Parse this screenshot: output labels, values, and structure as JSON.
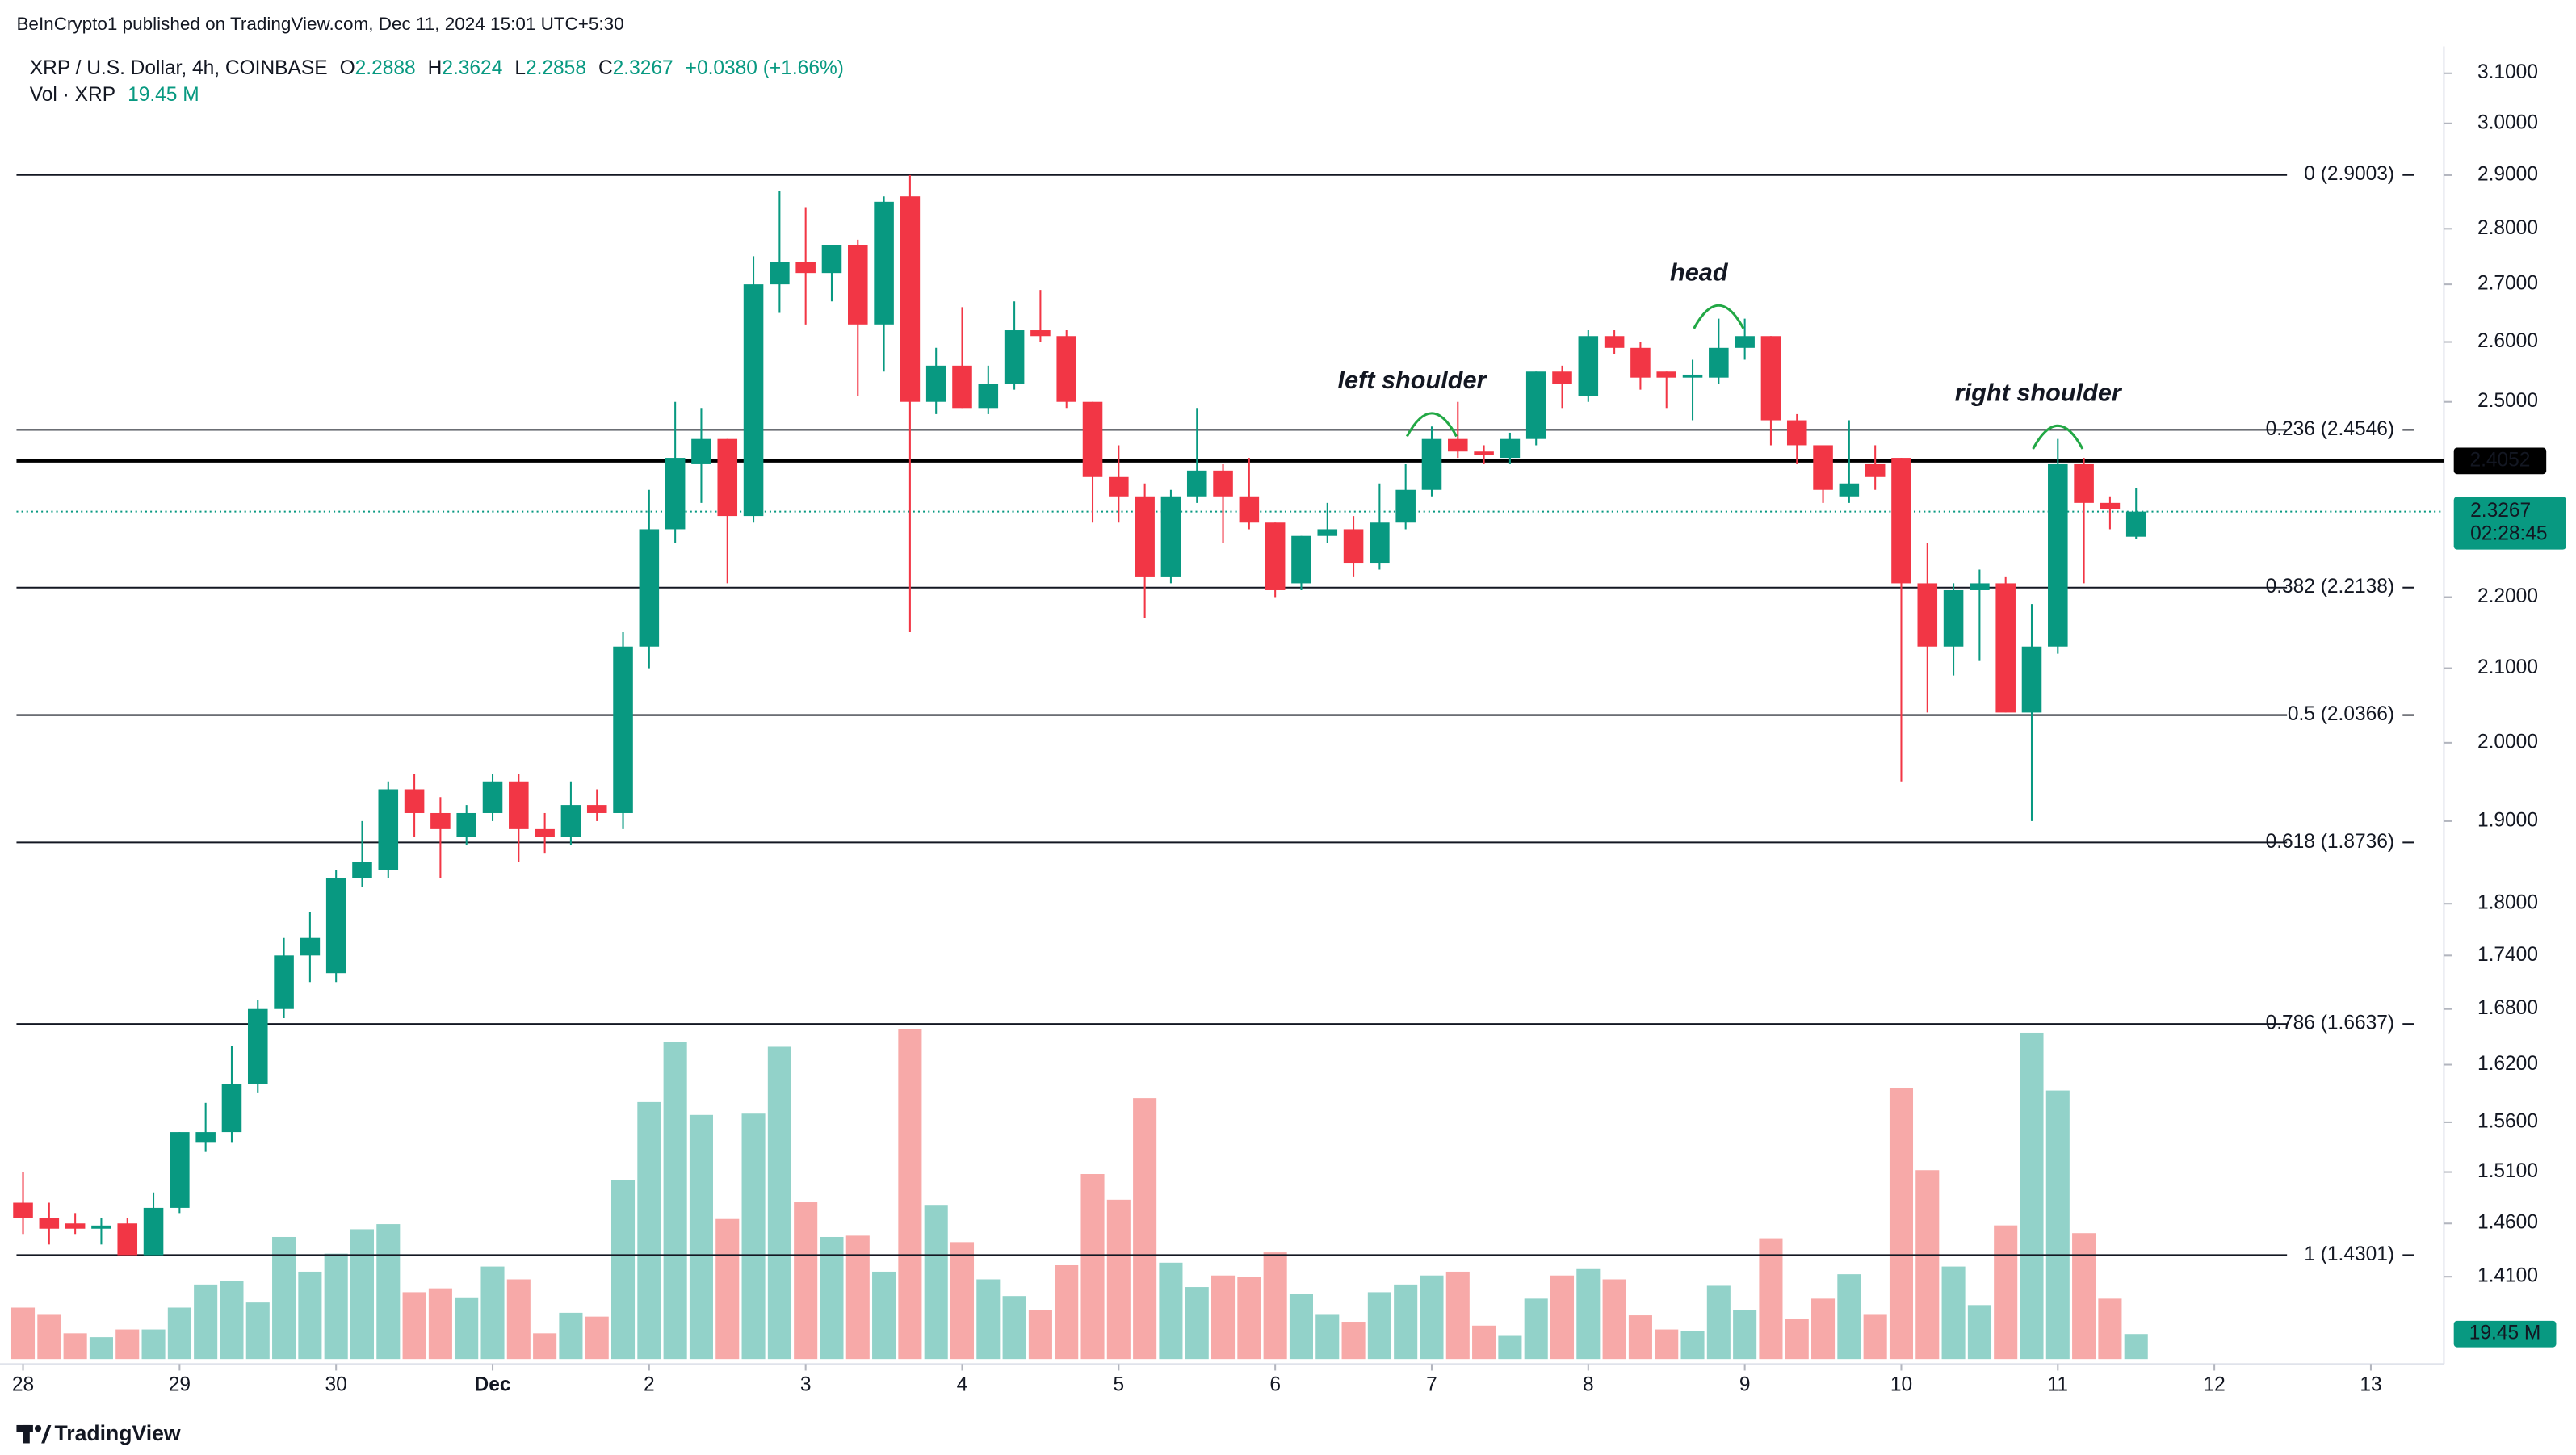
{
  "header": "BeInCrypto1 published on TradingView.com, Dec 11, 2024 15:01 UTC+5:30",
  "footer": "TradingView",
  "chart_data": {
    "type": "candlestick",
    "symbol": "XRP / U.S. Dollar, 4h, COINBASE",
    "legend": {
      "o": "O",
      "h": "H",
      "l": "L",
      "c": "C",
      "change": "+0.0380 (+1.66%)",
      "volume_name": "Vol · XRP",
      "volume_label": "19.45 M"
    },
    "up_color": "#089981",
    "down_color": "#f23645",
    "volume_up_color": "#92d2c9",
    "volume_down_color": "#f7a9a8",
    "log_scale": true,
    "open": [
      1.48,
      1.465,
      1.46,
      1.455,
      1.46,
      1.43,
      1.475,
      1.54,
      1.55,
      1.6,
      1.68,
      1.74,
      1.72,
      1.83,
      1.84,
      1.94,
      1.91,
      1.88,
      1.91,
      1.95,
      1.89,
      1.88,
      1.92,
      1.91,
      2.13,
      2.3,
      2.4,
      2.44,
      2.32,
      2.7,
      2.74,
      2.72,
      2.77,
      2.63,
      2.86,
      2.5,
      2.56,
      2.49,
      2.53,
      2.62,
      2.61,
      2.5,
      2.38,
      2.35,
      2.23,
      2.35,
      2.39,
      2.35,
      2.31,
      2.22,
      2.29,
      2.3,
      2.25,
      2.31,
      2.36,
      2.44,
      2.42,
      2.41,
      2.44,
      2.55,
      2.51,
      2.61,
      2.59,
      2.55,
      2.54,
      2.54,
      2.59,
      2.61,
      2.47,
      2.43,
      2.35,
      2.4,
      2.41,
      2.22,
      2.13,
      2.21,
      2.22,
      2.04,
      2.13,
      2.4,
      2.34,
      2.2888
    ],
    "high": [
      1.51,
      1.48,
      1.47,
      1.465,
      1.465,
      1.49,
      1.55,
      1.58,
      1.64,
      1.69,
      1.76,
      1.79,
      1.84,
      1.9,
      1.95,
      1.96,
      1.93,
      1.92,
      1.96,
      1.96,
      1.91,
      1.95,
      1.94,
      2.15,
      2.36,
      2.5,
      2.49,
      2.44,
      2.75,
      2.87,
      2.84,
      2.77,
      2.78,
      2.86,
      2.9,
      2.59,
      2.66,
      2.56,
      2.67,
      2.69,
      2.62,
      2.5,
      2.43,
      2.37,
      2.36,
      2.49,
      2.4,
      2.41,
      2.31,
      2.29,
      2.34,
      2.32,
      2.37,
      2.4,
      2.46,
      2.5,
      2.43,
      2.45,
      2.55,
      2.56,
      2.62,
      2.62,
      2.6,
      2.55,
      2.57,
      2.64,
      2.64,
      2.61,
      2.48,
      2.43,
      2.47,
      2.43,
      2.41,
      2.28,
      2.22,
      2.24,
      2.23,
      2.19,
      2.44,
      2.41,
      2.35,
      2.3624
    ],
    "low": [
      1.45,
      1.44,
      1.45,
      1.44,
      1.43,
      1.43,
      1.47,
      1.53,
      1.54,
      1.59,
      1.67,
      1.71,
      1.71,
      1.82,
      1.83,
      1.88,
      1.83,
      1.87,
      1.9,
      1.85,
      1.86,
      1.87,
      1.9,
      1.89,
      2.1,
      2.28,
      2.34,
      2.22,
      2.31,
      2.65,
      2.63,
      2.67,
      2.51,
      2.55,
      2.15,
      2.48,
      2.49,
      2.48,
      2.52,
      2.6,
      2.49,
      2.31,
      2.31,
      2.17,
      2.22,
      2.34,
      2.28,
      2.3,
      2.2,
      2.21,
      2.28,
      2.23,
      2.24,
      2.3,
      2.35,
      2.41,
      2.4,
      2.4,
      2.43,
      2.49,
      2.5,
      2.58,
      2.52,
      2.49,
      2.47,
      2.53,
      2.57,
      2.43,
      2.4,
      2.34,
      2.34,
      2.36,
      1.95,
      2.04,
      2.09,
      2.11,
      2.04,
      1.9,
      2.12,
      2.22,
      2.3,
      2.2858
    ],
    "close": [
      1.465,
      1.455,
      1.455,
      1.458,
      1.43,
      1.475,
      1.55,
      1.55,
      1.6,
      1.68,
      1.74,
      1.76,
      1.83,
      1.85,
      1.94,
      1.91,
      1.89,
      1.91,
      1.95,
      1.89,
      1.88,
      1.92,
      1.91,
      2.13,
      2.3,
      2.41,
      2.44,
      2.32,
      2.7,
      2.74,
      2.72,
      2.77,
      2.63,
      2.85,
      2.5,
      2.56,
      2.49,
      2.53,
      2.62,
      2.61,
      2.5,
      2.38,
      2.35,
      2.23,
      2.35,
      2.39,
      2.35,
      2.31,
      2.21,
      2.29,
      2.3,
      2.25,
      2.31,
      2.36,
      2.44,
      2.42,
      2.415,
      2.44,
      2.55,
      2.53,
      2.61,
      2.59,
      2.54,
      2.54,
      2.545,
      2.59,
      2.61,
      2.47,
      2.43,
      2.36,
      2.37,
      2.38,
      2.22,
      2.13,
      2.21,
      2.22,
      2.04,
      2.13,
      2.4,
      2.34,
      2.33,
      2.3267
    ],
    "volume": [
      40,
      35,
      20,
      17,
      23,
      23,
      40,
      58,
      61,
      44,
      95,
      68,
      82,
      101,
      105,
      52,
      55,
      48,
      72,
      62,
      20,
      36,
      33,
      139,
      200,
      247,
      190,
      109,
      191,
      243,
      122,
      95,
      96,
      68,
      257,
      120,
      91,
      62,
      49,
      38,
      73,
      144,
      124,
      203,
      75,
      56,
      65,
      64,
      83,
      51,
      35,
      29,
      52,
      58,
      65,
      68,
      26,
      18,
      47,
      65,
      70,
      62,
      34,
      23,
      22,
      57,
      38,
      94,
      31,
      47,
      66,
      35,
      211,
      147,
      72,
      42,
      104,
      254,
      209,
      98,
      47,
      19.45
    ],
    "xlim": [
      -0.25,
      92.8
    ],
    "xticks": [
      {
        "value": 0,
        "label": "28"
      },
      {
        "value": 6,
        "label": "29"
      },
      {
        "value": 12,
        "label": "30"
      },
      {
        "value": 18,
        "label": "Dec"
      },
      {
        "value": 24,
        "label": "2"
      },
      {
        "value": 30,
        "label": "3"
      },
      {
        "value": 36,
        "label": "4"
      },
      {
        "value": 42,
        "label": "5"
      },
      {
        "value": 48,
        "label": "6"
      },
      {
        "value": 54,
        "label": "7"
      },
      {
        "value": 60,
        "label": "8"
      },
      {
        "value": 66,
        "label": "9"
      },
      {
        "value": 72,
        "label": "10"
      },
      {
        "value": 78,
        "label": "11"
      },
      {
        "value": 84,
        "label": "12"
      },
      {
        "value": 90,
        "label": "13"
      }
    ],
    "ylim": [
      1.336,
      3.155
    ],
    "yticks": [
      {
        "value": 3.1,
        "label": "3.1000"
      },
      {
        "value": 3.0,
        "label": "3.0000"
      },
      {
        "value": 2.9,
        "label": "2.9000"
      },
      {
        "value": 2.8,
        "label": "2.8000"
      },
      {
        "value": 2.7,
        "label": "2.7000"
      },
      {
        "value": 2.6,
        "label": "2.6000"
      },
      {
        "value": 2.5,
        "label": "2.5000"
      },
      {
        "value": 2.2,
        "label": "2.2000"
      },
      {
        "value": 2.1,
        "label": "2.1000"
      },
      {
        "value": 2.0,
        "label": "2.0000"
      },
      {
        "value": 1.9,
        "label": "1.9000"
      },
      {
        "value": 1.8,
        "label": "1.8000"
      },
      {
        "value": 1.74,
        "label": "1.7400"
      },
      {
        "value": 1.68,
        "label": "1.6800"
      },
      {
        "value": 1.62,
        "label": "1.6200"
      },
      {
        "value": 1.56,
        "label": "1.5600"
      },
      {
        "value": 1.51,
        "label": "1.5100"
      },
      {
        "value": 1.46,
        "label": "1.4600"
      },
      {
        "value": 1.41,
        "label": "1.4100"
      }
    ],
    "fib_levels": [
      {
        "value": 2.9003,
        "label": "0 (2.9003)"
      },
      {
        "value": 2.4546,
        "label": "0.236 (2.4546)"
      },
      {
        "value": 2.2138,
        "label": "0.382 (2.2138)"
      },
      {
        "value": 2.0366,
        "label": "0.5 (2.0366)"
      },
      {
        "value": 1.8736,
        "label": "0.618 (1.8736)"
      },
      {
        "value": 1.6637,
        "label": "0.786 (1.6637)"
      },
      {
        "value": 1.4301,
        "label": "1 (1.4301)"
      }
    ],
    "price_line": 2.4052,
    "last_price": 2.3267,
    "countdown": "02:28:45",
    "annotations": [
      {
        "text": "left shoulder",
        "index": 54
      },
      {
        "text": "head",
        "index": 65
      },
      {
        "text": "right shoulder",
        "index": 78
      }
    ]
  }
}
